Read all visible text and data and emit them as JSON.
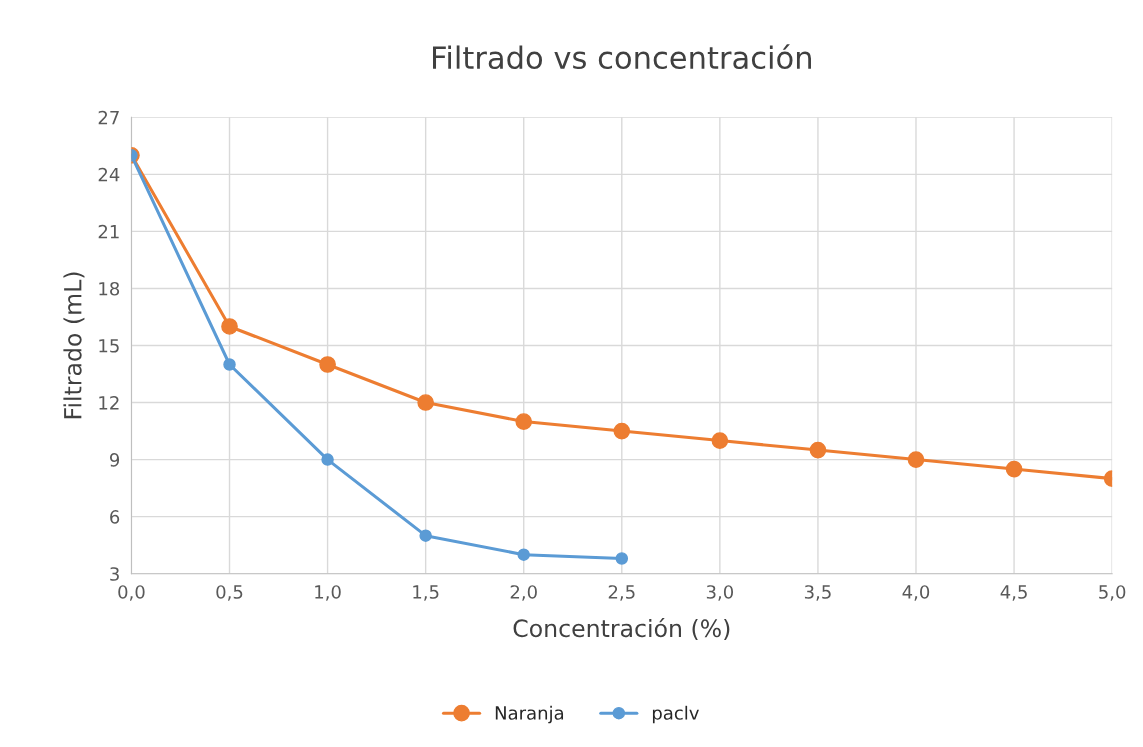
{
  "chart_data": {
    "type": "line",
    "title": "Filtrado vs concentración",
    "xlabel": "Concentración (%)",
    "ylabel": "Filtrado (mL)",
    "xlim": [
      0,
      5
    ],
    "xticks": [
      {
        "value": 0,
        "label": "0,0"
      },
      {
        "value": 0.5,
        "label": "0,5"
      },
      {
        "value": 1,
        "label": "1,0"
      },
      {
        "value": 1.5,
        "label": "1,5"
      },
      {
        "value": 2,
        "label": "2,0"
      },
      {
        "value": 2.5,
        "label": "2,5"
      },
      {
        "value": 3,
        "label": "3,0"
      },
      {
        "value": 3.5,
        "label": "3,5"
      },
      {
        "value": 4,
        "label": "4,0"
      },
      {
        "value": 4.5,
        "label": "4,5"
      },
      {
        "value": 5,
        "label": "5,0"
      }
    ],
    "ylim": [
      3,
      27
    ],
    "yticks": [
      3,
      6,
      9,
      12,
      15,
      18,
      21,
      24,
      27
    ],
    "grid": true,
    "legend": "bottom",
    "marker": "circle",
    "line_style": "solid",
    "series": [
      {
        "name": "Naranja",
        "color": "#ed7d31",
        "x": [
          0,
          0.5,
          1,
          1.5,
          2,
          2.5,
          3,
          3.5,
          4,
          4.5,
          5
        ],
        "values": [
          25,
          16,
          14,
          12,
          11,
          10.5,
          10,
          9.5,
          9,
          8.5,
          8
        ]
      },
      {
        "name": "paclv",
        "color": "#5b9bd5",
        "x": [
          0,
          0.5,
          1,
          1.5,
          2,
          2.5
        ],
        "values": [
          25,
          14,
          9,
          5,
          4,
          3.8
        ]
      }
    ]
  }
}
